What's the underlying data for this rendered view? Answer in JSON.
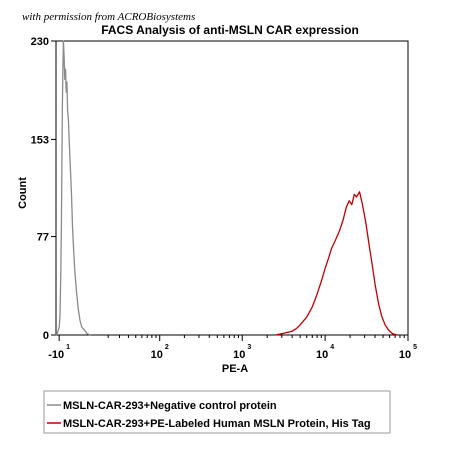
{
  "watermark": "with permission from ACROBiosystems",
  "colors": {
    "negative": "#8a8a8a",
    "positive": "#c00000",
    "axis": "#000000",
    "legend_border": "#9a9a9a"
  },
  "chart_data": {
    "type": "line",
    "title": "FACS Analysis of anti-MSLN CAR expression",
    "xlabel": "PE-A",
    "ylabel": "Count",
    "ylim": [
      0,
      230
    ],
    "y_ticks": [
      "0",
      "77",
      "153",
      "230"
    ],
    "x_ticks": [
      {
        "base": "-10",
        "exp": "1"
      },
      {
        "base": "10",
        "exp": "2"
      },
      {
        "base": "10",
        "exp": "3"
      },
      {
        "base": "10",
        "exp": "4"
      },
      {
        "base": "10",
        "exp": "5"
      }
    ],
    "x_scale": "biexponential",
    "legend_position": "bottom-left",
    "series": [
      {
        "name": "MSLN-CAR-293+Negative control protein",
        "color": "#8a8a8a",
        "x": [
          -12,
          -11,
          -10,
          -9.5,
          -9,
          -8.6,
          -8.3,
          -8,
          -7.7,
          -7.4,
          -7,
          -6.6,
          -6.2,
          -5.8,
          -5.4,
          -5,
          -4.5,
          -4,
          -3.4,
          -2.8,
          -2.2,
          -1.5,
          -0.8,
          0,
          1,
          2,
          3,
          5,
          6,
          8
        ],
        "values": [
          0,
          2,
          6,
          15,
          48,
          85,
          135,
          180,
          208,
          230,
          218,
          200,
          208,
          190,
          198,
          176,
          168,
          150,
          130,
          110,
          85,
          64,
          48,
          34,
          20,
          11,
          6,
          3,
          1,
          0
        ]
      },
      {
        "name": "MSLN-CAR-293+PE-Labeled Human MSLN Protein, His Tag",
        "color": "#c00000",
        "x": [
          2500,
          3000,
          3500,
          4000,
          4500,
          5000,
          6000,
          7000,
          8000,
          9000,
          10000,
          11000,
          12000,
          13500,
          15000,
          16500,
          18000,
          19500,
          21000,
          22500,
          24000,
          26000,
          28000,
          31000,
          34000,
          37000,
          40000,
          44000,
          48000,
          53000,
          58000,
          65000,
          75000
        ],
        "values": [
          0,
          1,
          2,
          3,
          5,
          8,
          14,
          22,
          32,
          42,
          52,
          60,
          68,
          75,
          82,
          90,
          100,
          105,
          102,
          110,
          108,
          112,
          103,
          88,
          70,
          55,
          40,
          25,
          15,
          8,
          4,
          1,
          0
        ]
      }
    ]
  }
}
